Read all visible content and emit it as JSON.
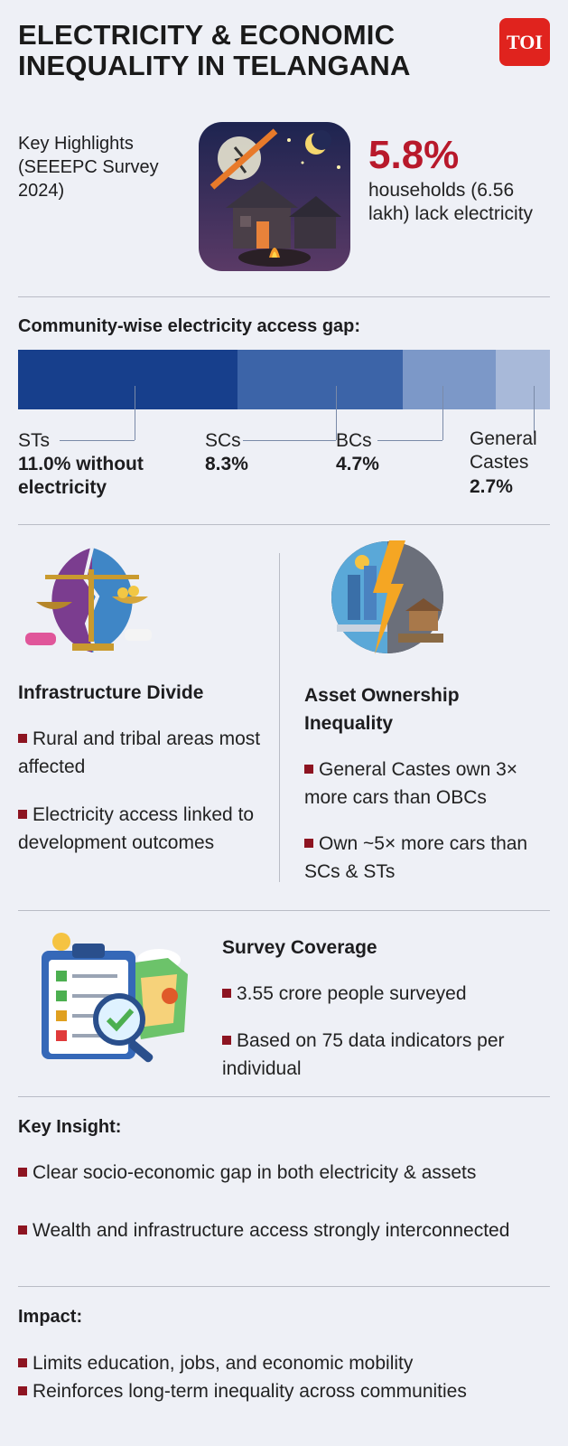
{
  "header": {
    "title_line1": "ELECTRICITY & ECONOMIC",
    "title_line2": "INEQUALITY IN TELANGANA",
    "logo_text": "TOI"
  },
  "highlights": {
    "label": "Key Highlights (SEEEPC Survey 2024)",
    "big_stat": "5.8%",
    "big_stat_desc": "households (6.56 lakh) lack electricity"
  },
  "chart_data": {
    "type": "bar",
    "title": "Community-wise electricity access gap:",
    "categories": [
      "STs",
      "SCs",
      "BCs",
      "General Castes"
    ],
    "values": [
      11.0,
      8.3,
      4.7,
      2.7
    ],
    "value_labels": [
      "11.0% without electricity",
      "8.3%",
      "4.7%",
      "2.7%"
    ],
    "colors": [
      "#173f8c",
      "#3c64a8",
      "#7c98c8",
      "#a8b9d9"
    ]
  },
  "infrastructure": {
    "heading": "Infrastructure Divide",
    "bullets": [
      "Rural and tribal areas most affected",
      "Electricity access linked to development outcomes"
    ]
  },
  "assets": {
    "heading": "Asset Ownership Inequality",
    "bullets": [
      "General Castes own 3× more cars than OBCs",
      "Own ~5× more cars than SCs & STs"
    ]
  },
  "coverage": {
    "heading": "Survey Coverage",
    "bullets": [
      "3.55 crore people surveyed",
      "Based on 75 data indicators per individual"
    ]
  },
  "insight": {
    "heading": "Key Insight:",
    "bullets": [
      "Clear socio-economic gap in both electricity & assets",
      "Wealth and infrastructure access strongly interconnected"
    ]
  },
  "impact": {
    "heading": "Impact:",
    "bullets": [
      "Limits education, jobs, and economic mobility",
      "Reinforces long-term inequality across communities"
    ]
  }
}
